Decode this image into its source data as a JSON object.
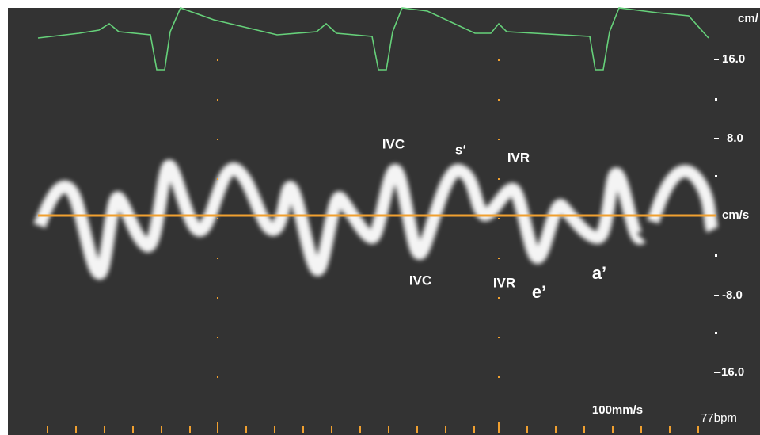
{
  "header": {
    "unit_top": "cm/"
  },
  "scale": {
    "labels": [
      "16.0",
      "8.0",
      "cm/s",
      "-8.0",
      "-16.0"
    ]
  },
  "annotations": [
    "IVC",
    "s‘",
    "IVR",
    "IVC",
    "IVR",
    "e’",
    "a’"
  ],
  "footer": {
    "sweep_speed": "100mm/s",
    "heart_rate": "77bpm"
  }
}
